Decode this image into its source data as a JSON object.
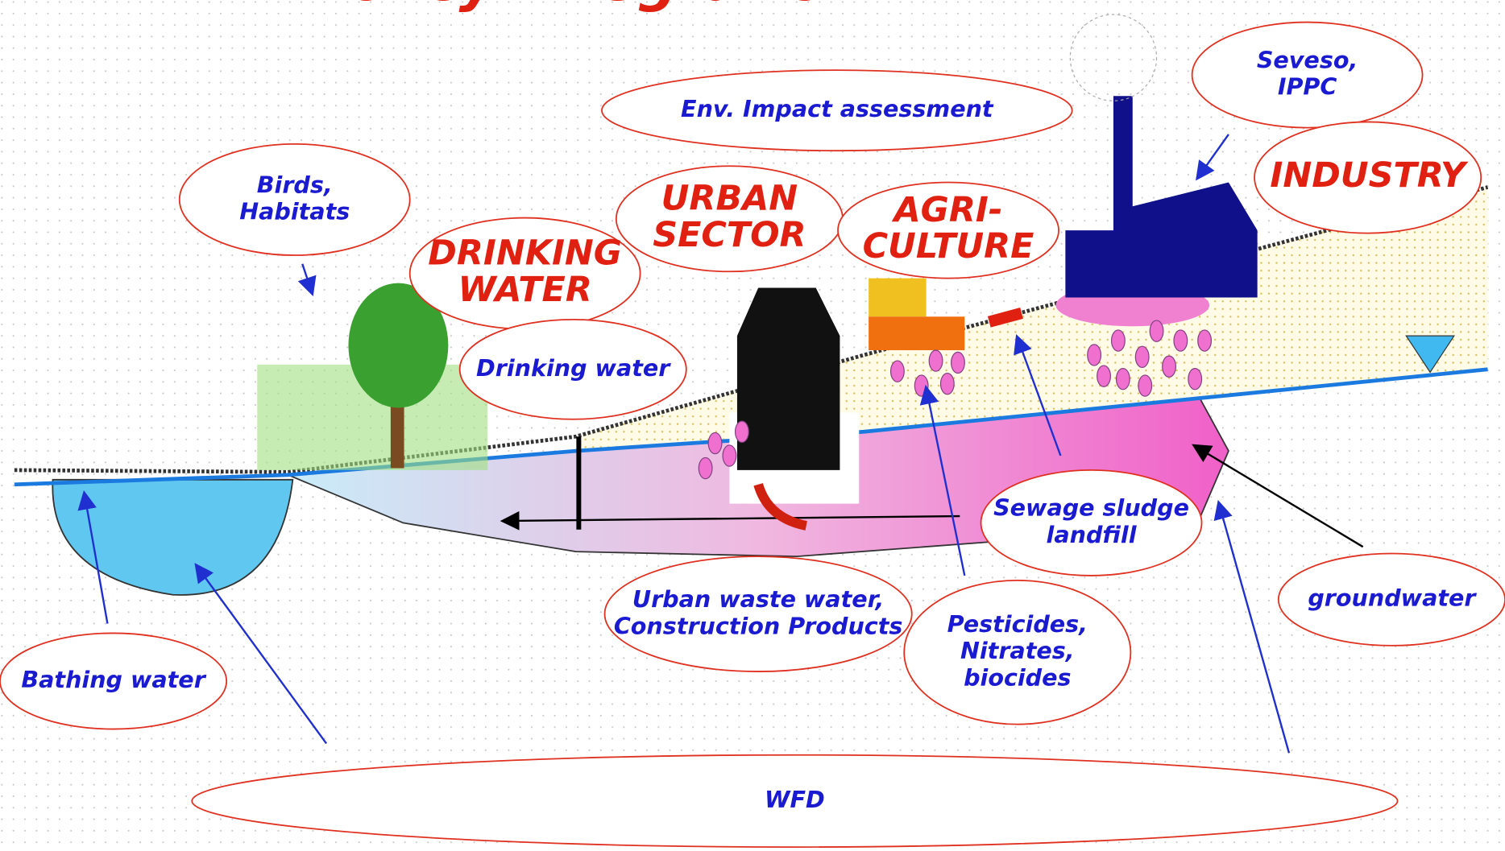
{
  "title": "Policy integration",
  "labels": [
    {
      "lines": [
        "Env. Impact assessment"
      ]
    },
    {
      "lines": [
        "Seveso,",
        "IPPC"
      ]
    },
    {
      "lines": [
        "INDUSTRY"
      ]
    },
    {
      "lines": [
        "Birds,",
        "Habitats"
      ]
    },
    {
      "lines": [
        "DRINKING",
        "WATER"
      ]
    },
    {
      "lines": [
        "URBAN",
        "SECTOR"
      ]
    },
    {
      "lines": [
        "AGRI-",
        "CULTURE"
      ]
    },
    {
      "lines": [
        "Drinking water"
      ]
    },
    {
      "lines": [
        "Sewage sludge",
        "landfill"
      ]
    },
    {
      "lines": [
        "groundwater"
      ]
    },
    {
      "lines": [
        "Urban waste water,",
        "Construction Products"
      ]
    },
    {
      "lines": [
        "Pesticides,",
        "Nitrates,",
        "biocides"
      ]
    },
    {
      "lines": [
        "Bathing water"
      ]
    },
    {
      "lines": [
        "WFD"
      ]
    }
  ]
}
